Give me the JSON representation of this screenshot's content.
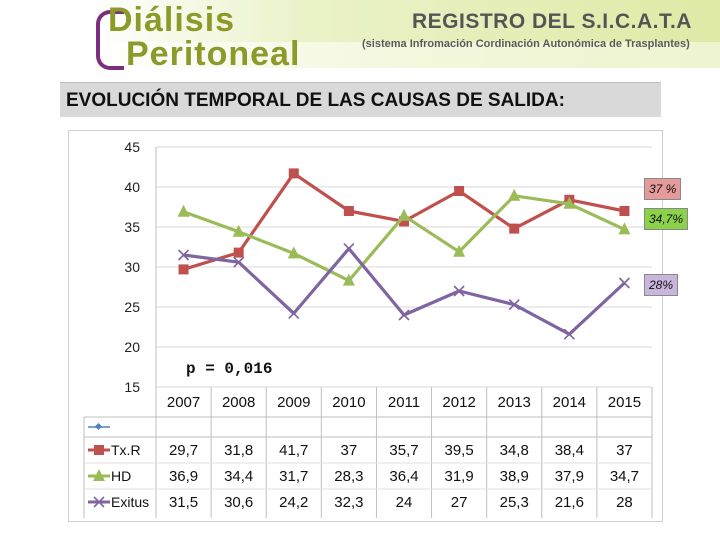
{
  "header": {
    "logo_line1": "Diálisis",
    "logo_line2": "Peritoneal",
    "registry_title": "REGISTRO DEL S.I.C.A.T.A",
    "registry_subtitle": "(sistema Infromación Cordinación Autonómica de Trasplantes)"
  },
  "slide_title": "EVOLUCIÓN TEMPORAL DE LAS CAUSAS DE SALIDA:",
  "chart_data": {
    "type": "line",
    "title": "",
    "xlabel": "",
    "ylabel": "",
    "ylim": [
      15,
      45
    ],
    "yticks": [
      "45",
      "40",
      "35",
      "30",
      "25",
      "20",
      "15"
    ],
    "categories": [
      "2007",
      "2008",
      "2009",
      "2010",
      "2011",
      "2012",
      "2013",
      "2014",
      "2015"
    ],
    "series": [
      {
        "name": "Tx.R",
        "color": "#c0504d",
        "marker": "square",
        "values": [
          29.7,
          31.8,
          41.7,
          37,
          35.7,
          39.5,
          34.8,
          38.4,
          37
        ],
        "labels": [
          "29,7",
          "31,8",
          "41,7",
          "37",
          "35,7",
          "39,5",
          "34,8",
          "38,4",
          "37"
        ]
      },
      {
        "name": "HD",
        "color": "#9bbb59",
        "marker": "triangle",
        "values": [
          36.9,
          34.4,
          31.7,
          28.3,
          36.4,
          31.9,
          38.9,
          37.9,
          34.7
        ],
        "labels": [
          "36,9",
          "34,4",
          "31,7",
          "28,3",
          "36,4",
          "31,9",
          "38,9",
          "37,9",
          "34,7"
        ]
      },
      {
        "name": "Exitus",
        "color": "#8064a2",
        "marker": "x",
        "values": [
          31.5,
          30.6,
          24.2,
          32.3,
          24,
          27,
          25.3,
          21.6,
          28
        ],
        "labels": [
          "31,5",
          "30,6",
          "24,2",
          "32,3",
          "24",
          "27",
          "25,3",
          "21,6",
          "28"
        ]
      }
    ],
    "annotation_p": "p = 0,016",
    "callouts": {
      "txr": "37 %",
      "hd": "34,7%",
      "exitus": "28%"
    }
  }
}
